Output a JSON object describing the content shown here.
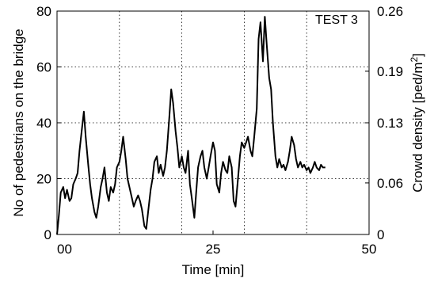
{
  "chart_data": {
    "type": "line",
    "title": "",
    "annotation": "TEST 3",
    "xlabel": "Time [min]",
    "ylabel_left": "No of pedestrians on the bridge",
    "ylabel_right_main": "Crowd density [ped/m",
    "ylabel_right_sup": "2",
    "ylabel_right_end": "]",
    "xlim": [
      0,
      50
    ],
    "ylim_left": [
      0,
      80
    ],
    "ylim_right": [
      0,
      0.26
    ],
    "grid": true,
    "x_tick_labels": [
      "00",
      "25",
      "50"
    ],
    "x_tick_values": [
      0,
      25,
      50
    ],
    "y_left_ticks": [
      "0",
      "20",
      "40",
      "60",
      "80"
    ],
    "y_left_tick_values": [
      0,
      20,
      40,
      60,
      80
    ],
    "y_right_ticks": [
      "0",
      "0.06",
      "0.13",
      "0.19",
      "0.26"
    ],
    "y_right_tick_values": [
      0,
      0.06,
      0.13,
      0.19,
      0.26
    ],
    "series": [
      {
        "x": [
          0.0,
          0.3,
          0.6,
          1.0,
          1.3,
          1.6,
          2.0,
          2.3,
          2.6,
          3.0,
          3.3,
          3.6,
          4.0,
          4.3,
          4.6,
          5.0,
          5.3,
          5.6,
          6.0,
          6.3,
          6.6,
          7.0,
          7.3,
          7.6,
          8.0,
          8.3,
          8.6,
          9.0,
          9.3,
          9.6,
          10.0,
          10.3,
          10.6,
          11.0,
          11.3,
          11.6,
          12.0,
          12.3,
          12.6,
          13.0,
          13.3,
          13.6,
          14.0,
          14.3,
          14.6,
          15.0,
          15.3,
          15.6,
          16.0,
          16.3,
          16.6,
          17.0,
          17.3,
          17.6,
          18.0,
          18.3,
          18.6,
          19.0,
          19.3,
          19.6,
          20.0,
          20.3,
          20.6,
          21.0,
          21.3,
          21.6,
          22.0,
          22.3,
          22.6,
          23.0,
          23.3,
          23.6,
          24.0,
          24.3,
          24.6,
          25.0,
          25.3,
          25.6,
          26.0,
          26.3,
          26.6,
          27.0,
          27.3,
          27.6,
          28.0,
          28.3,
          28.6,
          29.0,
          29.3,
          29.6,
          30.0,
          30.3,
          30.6,
          31.0,
          31.3,
          31.6,
          32.0,
          32.3,
          32.6,
          33.0,
          33.3,
          33.6,
          34.0,
          34.3,
          34.6,
          35.0,
          35.3,
          35.6,
          36.0,
          36.3,
          36.6,
          37.0,
          37.3,
          37.6,
          38.0,
          38.3,
          38.6,
          39.0,
          39.3,
          39.6,
          40.0,
          40.3,
          40.6,
          41.0,
          41.3,
          41.6,
          42.0,
          42.3,
          42.6,
          43.0
        ],
        "values": [
          0,
          7,
          15,
          17,
          13,
          16,
          12,
          13,
          18,
          20,
          22,
          30,
          38,
          44,
          35,
          25,
          18,
          13,
          8,
          6,
          10,
          17,
          20,
          24,
          15,
          12,
          17,
          15,
          18,
          24,
          26,
          30,
          35,
          27,
          20,
          17,
          13,
          10,
          12,
          14,
          12,
          9,
          3,
          2,
          8,
          16,
          20,
          26,
          28,
          22,
          25,
          21,
          24,
          30,
          42,
          52,
          47,
          37,
          31,
          24,
          28,
          24,
          22,
          30,
          18,
          13,
          6,
          15,
          24,
          28,
          30,
          24,
          20,
          24,
          28,
          33,
          30,
          18,
          15,
          22,
          26,
          23,
          22,
          28,
          24,
          12,
          10,
          20,
          28,
          33,
          31,
          33,
          35,
          30,
          28,
          35,
          45,
          70,
          76,
          62,
          78,
          68,
          56,
          52,
          40,
          28,
          24,
          27,
          24,
          25,
          23,
          26,
          30,
          35,
          32,
          27,
          24,
          26,
          24,
          25,
          23,
          24,
          22,
          24,
          26,
          24,
          23,
          25,
          24,
          24
        ]
      }
    ]
  }
}
